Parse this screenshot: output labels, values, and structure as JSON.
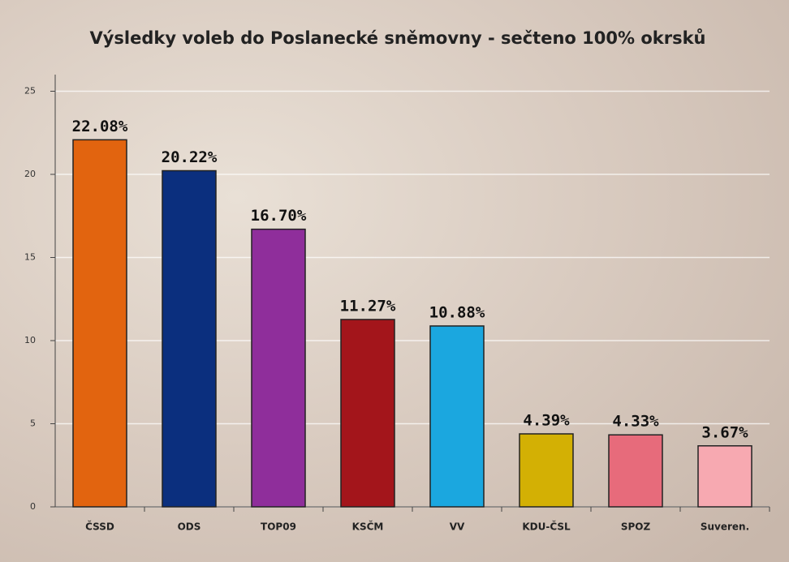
{
  "chart_data": {
    "type": "bar",
    "title": "Výsledky voleb do Poslanecké sněmovny - sečteno 100% okrsků",
    "categories": [
      "ČSSD",
      "ODS",
      "TOP09",
      "KSČM",
      "VV",
      "KDU-ČSL",
      "SPOZ",
      "Suveren."
    ],
    "values": [
      22.08,
      20.22,
      16.7,
      11.27,
      10.88,
      4.39,
      4.33,
      3.67
    ],
    "value_labels": [
      "22.08%",
      "20.22%",
      "16.70%",
      "11.27%",
      "10.88%",
      "4.39%",
      "4.33%",
      "3.67%"
    ],
    "colors": [
      "#e2640f",
      "#0b2f7e",
      "#8f2e9b",
      "#a3151b",
      "#1ba7df",
      "#d3b004",
      "#e76b7b",
      "#f7a9b1"
    ],
    "ylim": [
      0,
      26
    ],
    "yticks": [
      0,
      5,
      10,
      15,
      20,
      25
    ],
    "grid": true
  }
}
